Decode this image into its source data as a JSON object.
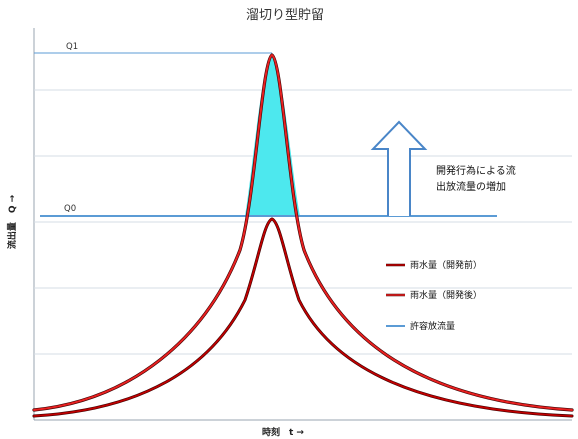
{
  "title": "溜切り型貯留",
  "axes": {
    "x_label": "時刻　t →",
    "y_label": "流出量　Q →"
  },
  "levels": {
    "q1": "Q1",
    "q0": "Q0"
  },
  "annotation": {
    "line1": "開発行為による流",
    "line2": "出放流量の増加"
  },
  "legend": [
    {
      "label": "雨水量（開発前）",
      "color": "#c00000"
    },
    {
      "label": "雨水量（開発後）",
      "color": "#e82020"
    },
    {
      "label": "許容放流量",
      "color": "#5b9bd5"
    }
  ],
  "colors": {
    "storage_fill": "#4de8ee",
    "arrow_stroke": "#4a86c8",
    "gridline": "#cfd6df",
    "frame": "#9aa4b0"
  }
}
